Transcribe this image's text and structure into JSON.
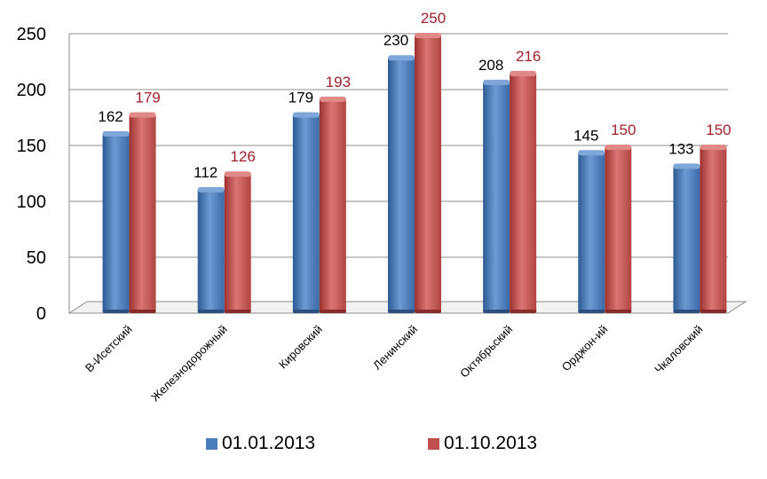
{
  "chart_data": {
    "type": "bar",
    "categories": [
      "В-Исетский",
      "Железнодорожный",
      "Кировский",
      "Ленинский",
      "Октябрьский",
      "Орджон-ий",
      "Чкаловский"
    ],
    "series": [
      {
        "name": "01.01.2013",
        "values": [
          162,
          112,
          179,
          230,
          208,
          145,
          133
        ],
        "color": "#4A7EBB",
        "label_color": "#000000"
      },
      {
        "name": "01.10.2013",
        "values": [
          179,
          126,
          193,
          250,
          216,
          150,
          150
        ],
        "color": "#C0504D",
        "label_color": "#A0202A"
      }
    ],
    "yticks": [
      "0",
      "50",
      "100",
      "150",
      "200",
      "250"
    ],
    "ylim": [
      0,
      250
    ],
    "grid": true,
    "legend": "bottom",
    "three_d": true
  }
}
